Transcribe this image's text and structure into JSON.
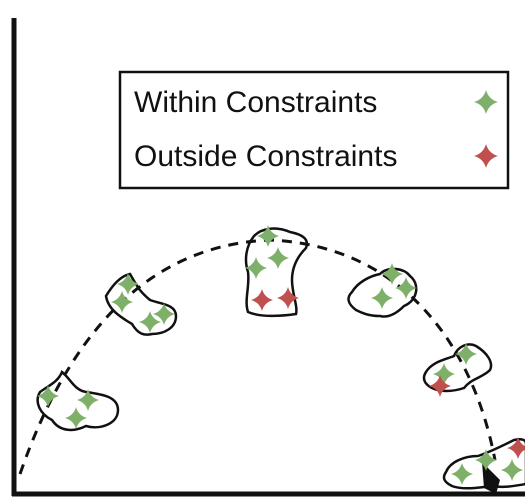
{
  "legend": {
    "entries": [
      {
        "label": "Within Constraints",
        "color": "#7fb069",
        "marker": "four-point-star-icon"
      },
      {
        "label": "Outside Constraints",
        "color": "#c0504d",
        "marker": "four-point-star-icon"
      }
    ]
  },
  "colors": {
    "within": "#7fb069",
    "outside": "#c0504d",
    "outline": "#111111",
    "axis": "#111111"
  }
}
